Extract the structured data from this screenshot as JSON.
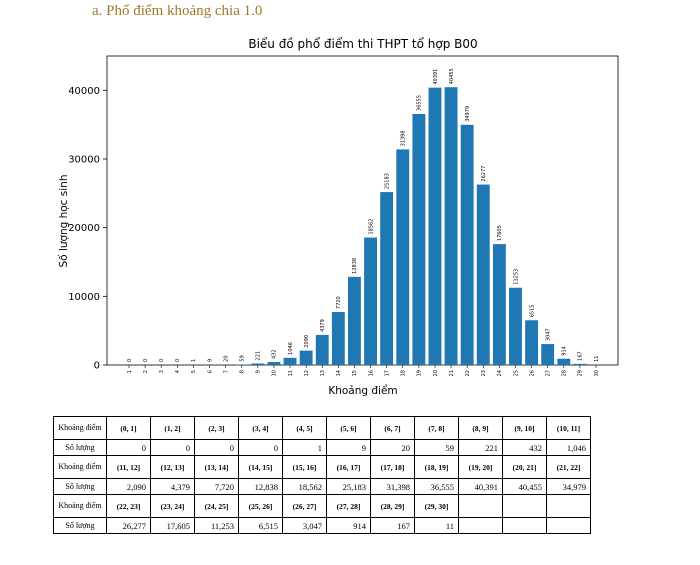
{
  "heading": "a. Phổ điểm khoảng chia 1.0",
  "chart_data": {
    "type": "bar",
    "title": "Biểu đồ phổ điểm thi THPT tổ hợp B00",
    "xlabel": "Khoảng điểm",
    "ylabel": "Số lượng học sinh",
    "ylim": [
      0,
      45000
    ],
    "yticks": [
      0,
      10000,
      20000,
      30000,
      40000
    ],
    "ytick_labels": [
      "0",
      "10000",
      "20000",
      "30000",
      "40000"
    ],
    "categories": [
      "1",
      "2",
      "3",
      "4",
      "5",
      "6",
      "7",
      "8",
      "9",
      "10",
      "11",
      "12",
      "13",
      "14",
      "15",
      "16",
      "17",
      "18",
      "19",
      "20",
      "21",
      "22",
      "23",
      "24",
      "25",
      "26",
      "27",
      "28",
      "29",
      "30"
    ],
    "values": [
      0,
      0,
      0,
      0,
      1,
      9,
      20,
      59,
      221,
      432,
      1046,
      2090,
      4379,
      7720,
      12838,
      18562,
      25183,
      31398,
      36555,
      40391,
      40455,
      34979,
      26277,
      17605,
      11253,
      6515,
      3047,
      914,
      167,
      11
    ],
    "data_labels": [
      "0",
      "0",
      "0",
      "0",
      "1",
      "9",
      "20",
      "59",
      "221",
      "432",
      "1046",
      "2090",
      "4379",
      "7720",
      "12838",
      "18562",
      "25183",
      "31398",
      "36555",
      "40391",
      "40455",
      "34979",
      "26277",
      "17605",
      "11253",
      "6515",
      "3047",
      "914",
      "167",
      "11"
    ],
    "bar_color": "#1f77b4"
  },
  "table": {
    "label_range": "Khoảng điểm",
    "label_count": "Số lượng",
    "rows": [
      {
        "ranges": [
          "(0, 1]",
          "(1, 2]",
          "(2, 3]",
          "(3, 4]",
          "(4, 5]",
          "(5, 6]",
          "(6, 7]",
          "(7, 8]",
          "(8, 9]",
          "(9, 10]",
          "(10, 11]"
        ],
        "counts": [
          "0",
          "0",
          "0",
          "0",
          "1",
          "9",
          "20",
          "59",
          "221",
          "432",
          "1,046"
        ]
      },
      {
        "ranges": [
          "(11, 12]",
          "(12, 13]",
          "(13, 14]",
          "(14, 15]",
          "(15, 16]",
          "(16, 17]",
          "(17, 18]",
          "(18, 19]",
          "(19, 20]",
          "(20, 21]",
          "(21, 22]"
        ],
        "counts": [
          "2,090",
          "4,379",
          "7,720",
          "12,838",
          "18,562",
          "25,183",
          "31,398",
          "36,555",
          "40,391",
          "40,455",
          "34,979"
        ]
      },
      {
        "ranges": [
          "(22, 23]",
          "(23, 24]",
          "(24, 25]",
          "(25, 26]",
          "(26, 27]",
          "(27, 28]",
          "(28, 29]",
          "(29, 30]",
          "",
          "",
          ""
        ],
        "counts": [
          "26,277",
          "17,605",
          "11,253",
          "6,515",
          "3,047",
          "914",
          "167",
          "11",
          "",
          "",
          ""
        ]
      }
    ]
  }
}
